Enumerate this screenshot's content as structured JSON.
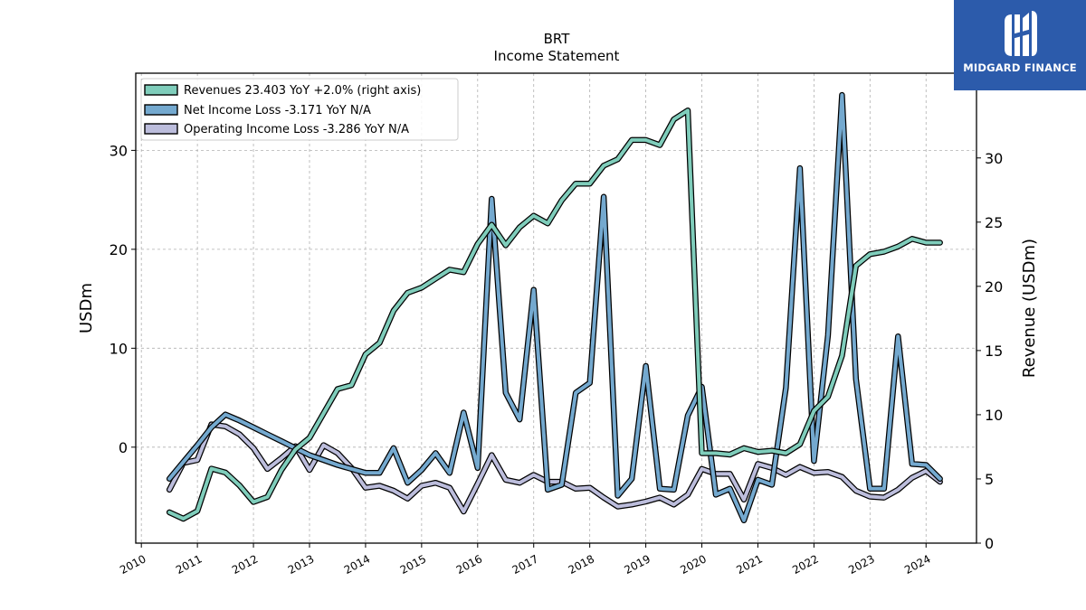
{
  "header": {
    "title": "BRT",
    "subtitle": "Income Statement"
  },
  "brand": {
    "name": "MIDGARD FINANCE",
    "color": "#2c5bab"
  },
  "chart_data": {
    "type": "line",
    "x_axis": {
      "ticks": [
        2010,
        2011,
        2012,
        2013,
        2014,
        2015,
        2016,
        2017,
        2018,
        2019,
        2020,
        2021,
        2022,
        2023,
        2024
      ],
      "range": [
        2009.9,
        2024.9
      ]
    },
    "left_axis": {
      "label": "USDm",
      "ticks": [
        0,
        10,
        20,
        30
      ],
      "range": [
        -9.7,
        37.8
      ]
    },
    "right_axis": {
      "label": "Revenue (USDm)",
      "ticks": [
        0,
        5,
        10,
        15,
        20,
        25,
        30
      ],
      "range": [
        0,
        36.6
      ]
    },
    "grid": true,
    "legend_position": "top-left",
    "series": [
      {
        "name": "Revenues  23.403 YoY +2.0% (right axis)",
        "axis": "right",
        "color": "#7fcdbb",
        "x": [
          2010.5,
          2010.75,
          2011.0,
          2011.25,
          2011.5,
          2011.75,
          2012.0,
          2012.25,
          2012.5,
          2012.75,
          2013.0,
          2013.25,
          2013.5,
          2013.75,
          2014.0,
          2014.25,
          2014.5,
          2014.75,
          2015.0,
          2015.25,
          2015.5,
          2015.75,
          2016.0,
          2016.25,
          2016.5,
          2016.75,
          2017.0,
          2017.25,
          2017.5,
          2017.75,
          2018.0,
          2018.25,
          2018.5,
          2018.75,
          2019.0,
          2019.25,
          2019.5,
          2019.75,
          2020.0,
          2020.25,
          2020.5,
          2020.75,
          2021.0,
          2021.25,
          2021.5,
          2021.75,
          2022.0,
          2022.25,
          2022.5,
          2022.75,
          2023.0,
          2023.25,
          2023.5,
          2023.75,
          2024.0,
          2024.25
        ],
        "values": [
          2.4,
          1.9,
          2.5,
          5.8,
          5.5,
          4.5,
          3.2,
          3.6,
          5.7,
          7.3,
          8.2,
          10.1,
          12.0,
          12.3,
          14.7,
          15.6,
          18.1,
          19.5,
          19.9,
          20.6,
          21.3,
          21.1,
          23.3,
          24.8,
          23.2,
          24.6,
          25.5,
          24.9,
          26.7,
          28.0,
          28.0,
          29.4,
          29.9,
          31.4,
          31.4,
          31.0,
          33.0,
          33.7,
          7.0,
          7.0,
          6.9,
          7.4,
          7.1,
          7.2,
          7.0,
          7.7,
          10.3,
          11.4,
          14.6,
          21.6,
          22.5,
          22.7,
          23.1,
          23.7,
          23.4,
          23.4
        ]
      },
      {
        "name": "Net Income Loss  -3.171 YoY N/A",
        "axis": "left",
        "color": "#74a9cf",
        "x": [
          2010.5,
          2010.75,
          2011.0,
          2011.25,
          2011.5,
          2011.75,
          2012.0,
          2012.25,
          2012.5,
          2012.75,
          2013.0,
          2013.25,
          2013.5,
          2013.75,
          2014.0,
          2014.25,
          2014.5,
          2014.75,
          2015.0,
          2015.25,
          2015.5,
          2015.75,
          2016.0,
          2016.25,
          2016.5,
          2016.75,
          2017.0,
          2017.25,
          2017.5,
          2017.75,
          2018.0,
          2018.25,
          2018.5,
          2018.75,
          2019.0,
          2019.25,
          2019.5,
          2019.75,
          2020.0,
          2020.25,
          2020.5,
          2020.75,
          2021.0,
          2021.25,
          2021.5,
          2021.75,
          2022.0,
          2022.25,
          2022.5,
          2022.75,
          2023.0,
          2023.25,
          2023.5,
          2023.75,
          2024.0,
          2024.25
        ],
        "values": [
          -3.2,
          -1.5,
          0.2,
          2.0,
          3.3,
          2.7,
          2.0,
          1.3,
          0.6,
          -0.1,
          -0.8,
          -1.3,
          -1.8,
          -2.2,
          -2.6,
          -2.6,
          -0.1,
          -3.6,
          -2.3,
          -0.6,
          -2.6,
          3.5,
          -2.1,
          25.1,
          5.5,
          2.8,
          15.9,
          -4.3,
          -3.8,
          5.5,
          6.5,
          25.3,
          -4.9,
          -3.2,
          8.2,
          -4.2,
          -4.3,
          3.2,
          6.1,
          -4.8,
          -4.2,
          -7.4,
          -3.3,
          -3.8,
          6.0,
          28.2,
          -1.4,
          11.3,
          35.6,
          6.9,
          -4.2,
          -4.2,
          11.2,
          -1.7,
          -1.8,
          -3.2
        ]
      },
      {
        "name": "Operating Income Loss  -3.286 YoY N/A",
        "axis": "left",
        "color": "#bcbddc",
        "x": [
          2010.5,
          2010.75,
          2011.0,
          2011.25,
          2011.5,
          2011.75,
          2012.0,
          2012.25,
          2012.5,
          2012.75,
          2013.0,
          2013.25,
          2013.5,
          2013.75,
          2014.0,
          2014.25,
          2014.5,
          2014.75,
          2015.0,
          2015.25,
          2015.5,
          2015.75,
          2016.0,
          2016.25,
          2016.5,
          2016.75,
          2017.0,
          2017.25,
          2017.5,
          2017.75,
          2018.0,
          2018.25,
          2018.5,
          2018.75,
          2019.0,
          2019.25,
          2019.5,
          2019.75,
          2020.0,
          2020.25,
          2020.5,
          2020.75,
          2021.0,
          2021.25,
          2021.5,
          2021.75,
          2022.0,
          2022.25,
          2022.5,
          2022.75,
          2023.0,
          2023.25,
          2023.5,
          2023.75,
          2024.0,
          2024.25
        ],
        "values": [
          -4.3,
          -1.6,
          -1.3,
          2.3,
          2.1,
          1.3,
          -0.1,
          -2.2,
          -1.1,
          0.1,
          -2.3,
          0.2,
          -0.6,
          -2.1,
          -4.1,
          -3.9,
          -4.4,
          -5.2,
          -3.9,
          -3.6,
          -4.1,
          -6.5,
          -3.7,
          -0.8,
          -3.3,
          -3.6,
          -2.8,
          -3.5,
          -3.5,
          -4.2,
          -4.1,
          -5.1,
          -6.0,
          -5.8,
          -5.5,
          -5.1,
          -5.8,
          -4.8,
          -2.2,
          -2.7,
          -2.7,
          -5.3,
          -1.7,
          -2.1,
          -2.8,
          -2.0,
          -2.6,
          -2.5,
          -3.0,
          -4.4,
          -5.0,
          -5.1,
          -4.3,
          -3.1,
          -2.4,
          -3.5
        ]
      }
    ]
  }
}
